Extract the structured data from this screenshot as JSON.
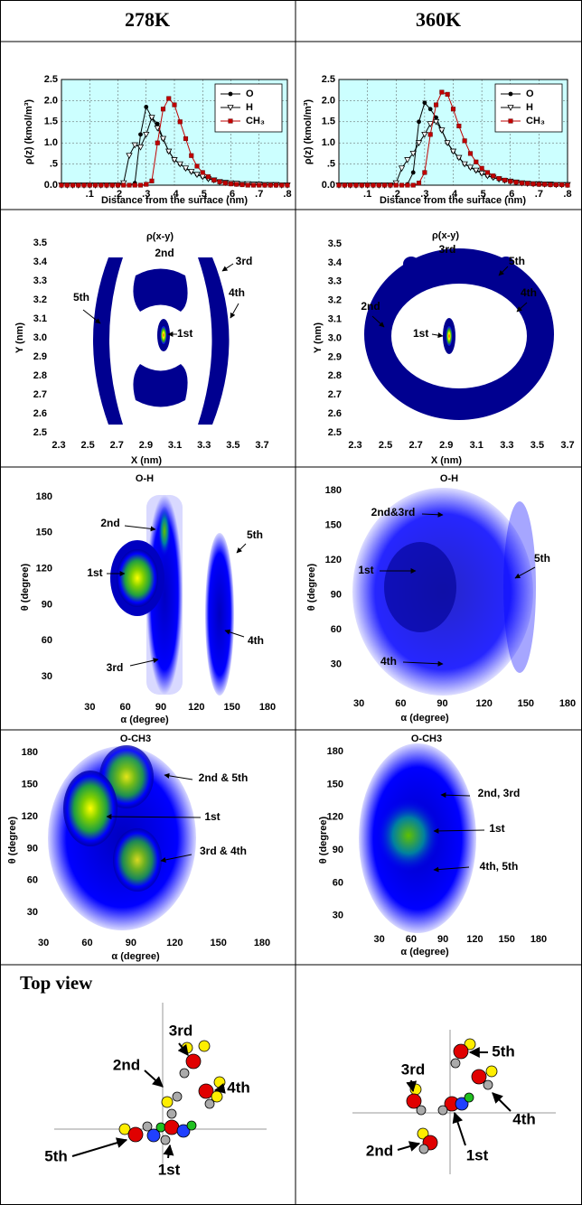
{
  "columns": [
    "278K",
    "360K"
  ],
  "chart_data": [
    {
      "type": "line",
      "x_label": "Distance from the surface (nm)",
      "y_label": "ρ(z) (kmol/m³)",
      "x": [
        0,
        0.02,
        0.04,
        0.06,
        0.08,
        0.1,
        0.12,
        0.14,
        0.16,
        0.18,
        0.2,
        0.22,
        0.24,
        0.26,
        0.28,
        0.3,
        0.32,
        0.34,
        0.36,
        0.38,
        0.4,
        0.42,
        0.44,
        0.46,
        0.48,
        0.5,
        0.52,
        0.54,
        0.56,
        0.58,
        0.6,
        0.62,
        0.64,
        0.66,
        0.68,
        0.7,
        0.72,
        0.74,
        0.76,
        0.78,
        0.8
      ],
      "series": [
        {
          "name": "O",
          "color": "#000000",
          "marker": "circle",
          "values": [
            0,
            0,
            0,
            0,
            0,
            0,
            0,
            0,
            0,
            0,
            0,
            0,
            0,
            0.05,
            1.2,
            1.85,
            1.6,
            1.45,
            1.1,
            0.8,
            0.6,
            0.5,
            0.4,
            0.32,
            0.25,
            0.2,
            0.15,
            0.12,
            0.08,
            0.06,
            0.05,
            0.04,
            0.03,
            0.03,
            0.02,
            0.02,
            0.01,
            0.01,
            0.01,
            0,
            0
          ]
        },
        {
          "name": "H",
          "color": "#000000",
          "marker": "triangle-down",
          "values": [
            0,
            0,
            0,
            0,
            0,
            0,
            0,
            0,
            0,
            0,
            0,
            0.05,
            0.7,
            0.95,
            0.9,
            1.2,
            1.6,
            1.35,
            1.1,
            0.8,
            0.6,
            0.5,
            0.4,
            0.32,
            0.25,
            0.2,
            0.15,
            0.12,
            0.08,
            0.06,
            0.05,
            0.04,
            0.03,
            0.03,
            0.02,
            0.02,
            0.01,
            0.01,
            0.01,
            0,
            0
          ]
        },
        {
          "name": "CH₃",
          "color": "#c00000",
          "marker": "square",
          "values": [
            0,
            0,
            0,
            0,
            0,
            0,
            0,
            0,
            0,
            0,
            0,
            0,
            0,
            0,
            0,
            0.02,
            0.1,
            1.0,
            1.8,
            2.05,
            1.9,
            1.5,
            1.1,
            0.7,
            0.45,
            0.3,
            0.2,
            0.12,
            0.08,
            0.05,
            0.03,
            0.02,
            0.01,
            0,
            0,
            0,
            0,
            0,
            0,
            0,
            0
          ]
        }
      ],
      "xlim": [
        0,
        0.8
      ],
      "ylim": [
        0,
        2.5
      ],
      "xticks": [
        {
          "value": 0.1,
          "label": ".1"
        },
        {
          "value": 0.2,
          "label": ".2"
        },
        {
          "value": 0.3,
          "label": ".3"
        },
        {
          "value": 0.4,
          "label": ".4"
        },
        {
          "value": 0.5,
          "label": ".5"
        },
        {
          "value": 0.6,
          "label": ".6"
        },
        {
          "value": 0.7,
          "label": ".7"
        },
        {
          "value": 0.8,
          "label": ".8"
        }
      ],
      "yticks": [
        {
          "value": 0,
          "label": "0.0"
        },
        {
          "value": 0.5,
          "label": ".5"
        },
        {
          "value": 1,
          "label": "1.0"
        },
        {
          "value": 1.5,
          "label": "1.5"
        },
        {
          "value": 2,
          "label": "2.0"
        },
        {
          "value": 2.5,
          "label": "2.5"
        }
      ],
      "grid": true,
      "legend": "upper right",
      "background": "#ccffff"
    },
    {
      "type": "line",
      "x_label": "Distance from the surface (nm)",
      "y_label": "ρ(z) (kmol/m³)",
      "x": [
        0,
        0.02,
        0.04,
        0.06,
        0.08,
        0.1,
        0.12,
        0.14,
        0.16,
        0.18,
        0.2,
        0.22,
        0.24,
        0.26,
        0.28,
        0.3,
        0.32,
        0.34,
        0.36,
        0.38,
        0.4,
        0.42,
        0.44,
        0.46,
        0.48,
        0.5,
        0.52,
        0.54,
        0.56,
        0.58,
        0.6,
        0.62,
        0.64,
        0.66,
        0.68,
        0.7,
        0.72,
        0.74,
        0.76,
        0.78,
        0.8
      ],
      "series": [
        {
          "name": "O",
          "color": "#000000",
          "marker": "circle",
          "values": [
            0,
            0,
            0,
            0,
            0,
            0,
            0,
            0,
            0,
            0,
            0,
            0,
            0.02,
            0.3,
            1.5,
            1.95,
            1.8,
            1.6,
            1.3,
            1.0,
            0.8,
            0.65,
            0.5,
            0.42,
            0.35,
            0.28,
            0.22,
            0.18,
            0.14,
            0.11,
            0.09,
            0.07,
            0.05,
            0.04,
            0.03,
            0.03,
            0.02,
            0.02,
            0.01,
            0.01,
            0.01
          ]
        },
        {
          "name": "H",
          "color": "#000000",
          "marker": "triangle-down",
          "values": [
            0,
            0,
            0,
            0,
            0,
            0,
            0,
            0,
            0,
            0,
            0.05,
            0.4,
            0.6,
            0.75,
            1.0,
            1.2,
            1.45,
            1.5,
            1.3,
            1.0,
            0.8,
            0.65,
            0.5,
            0.42,
            0.35,
            0.28,
            0.22,
            0.18,
            0.14,
            0.11,
            0.09,
            0.07,
            0.05,
            0.04,
            0.03,
            0.03,
            0.02,
            0.02,
            0.01,
            0.01,
            0.01
          ]
        },
        {
          "name": "CH₃",
          "color": "#c00000",
          "marker": "square",
          "values": [
            0,
            0,
            0,
            0,
            0,
            0,
            0,
            0,
            0,
            0,
            0,
            0,
            0,
            0,
            0.05,
            0.3,
            1.2,
            1.9,
            2.2,
            2.15,
            1.8,
            1.4,
            1.05,
            0.75,
            0.55,
            0.4,
            0.3,
            0.22,
            0.16,
            0.12,
            0.09,
            0.07,
            0.05,
            0.04,
            0.03,
            0.02,
            0.02,
            0.01,
            0.01,
            0.01,
            0
          ]
        }
      ],
      "xlim": [
        0,
        0.8
      ],
      "ylim": [
        0,
        2.5
      ],
      "xticks": [
        {
          "value": 0.1,
          "label": ".1"
        },
        {
          "value": 0.2,
          "label": ".2"
        },
        {
          "value": 0.3,
          "label": ".3"
        },
        {
          "value": 0.4,
          "label": ".4"
        },
        {
          "value": 0.5,
          "label": ".5"
        },
        {
          "value": 0.6,
          "label": ".6"
        },
        {
          "value": 0.7,
          "label": ".7"
        },
        {
          "value": 0.8,
          "label": ".8"
        }
      ],
      "yticks": [
        {
          "value": 0,
          "label": "0.0"
        },
        {
          "value": 0.5,
          "label": ".5"
        },
        {
          "value": 1,
          "label": "1.0"
        },
        {
          "value": 1.5,
          "label": "1.5"
        },
        {
          "value": 2,
          "label": "2.0"
        },
        {
          "value": 2.5,
          "label": "2.5"
        }
      ],
      "grid": true,
      "legend": "upper right",
      "background": "#ccffff"
    },
    {
      "type": "heatmap",
      "title": "ρ(x-y)",
      "x_label": "X (nm)",
      "y_label": "Y (nm)",
      "xlim": [
        2.3,
        3.7
      ],
      "ylim": [
        2.5,
        3.5
      ],
      "xticks": [
        2.3,
        2.5,
        2.7,
        2.9,
        3.1,
        3.3,
        3.5,
        3.7
      ],
      "yticks": [
        2.5,
        2.6,
        2.7,
        2.8,
        2.9,
        {
          "value": 3,
          "label": "3.0"
        },
        3.1,
        3.2,
        3.3,
        3.4,
        3.5
      ],
      "annotations": [
        "2nd",
        "3rd",
        "5th",
        "4th",
        "1st"
      ]
    },
    {
      "type": "heatmap",
      "title": "ρ(x-y)",
      "x_label": "X (nm)",
      "y_label": "Y (nm)",
      "xlim": [
        2.3,
        3.7
      ],
      "ylim": [
        2.5,
        3.5
      ],
      "xticks": [
        2.3,
        2.5,
        2.7,
        2.9,
        3.1,
        3.3,
        3.5,
        3.7
      ],
      "yticks": [
        2.5,
        2.6,
        2.7,
        2.8,
        2.9,
        {
          "value": 3,
          "label": "3.0"
        },
        3.1,
        3.2,
        3.3,
        3.4,
        3.5
      ],
      "annotations": [
        "3rd",
        "5th",
        "4th",
        "2nd",
        "1st"
      ]
    },
    {
      "type": "heatmap",
      "title": "O-H",
      "x_label": "α (degree)",
      "y_label": "θ (degree)",
      "xlim": [
        0,
        180
      ],
      "ylim": [
        15,
        180
      ],
      "xticks": [
        30,
        60,
        90,
        120,
        150,
        180
      ],
      "yticks": [
        30,
        60,
        90,
        120,
        150,
        180
      ],
      "annotations": [
        "2nd",
        "5th",
        "1st",
        "4th",
        "3rd"
      ]
    },
    {
      "type": "heatmap",
      "title": "O-H",
      "x_label": "α (degree)",
      "y_label": "θ (degree)",
      "xlim": [
        0,
        180
      ],
      "ylim": [
        15,
        180
      ],
      "xticks": [
        30,
        60,
        90,
        120,
        150,
        180
      ],
      "yticks": [
        30,
        60,
        90,
        120,
        150,
        180
      ],
      "annotations": [
        "2nd&3rd",
        "5th",
        "1st",
        "4th"
      ]
    },
    {
      "type": "heatmap",
      "title": "O-CH3",
      "x_label": "α (degree)",
      "y_label": "θ (degree)",
      "xlim": [
        15,
        180
      ],
      "ylim": [
        15,
        180
      ],
      "xticks": [
        30,
        60,
        90,
        120,
        150,
        180
      ],
      "yticks": [
        30,
        60,
        90,
        120,
        150,
        180
      ],
      "annotations": [
        "2nd & 5th",
        "1st",
        "3rd & 4th"
      ]
    },
    {
      "type": "heatmap",
      "title": "O-CH3",
      "x_label": "α (degree)",
      "y_label": "θ (degree)",
      "xlim": [
        15,
        180
      ],
      "ylim": [
        15,
        180
      ],
      "xticks": [
        30,
        60,
        90,
        120,
        150,
        180
      ],
      "yticks": [
        30,
        60,
        90,
        120,
        150,
        180
      ],
      "annotations": [
        "2nd, 3rd",
        "1st",
        "4th,  5th"
      ]
    }
  ],
  "top_view": {
    "title": "Top view",
    "labels": [
      [
        "3rd",
        "2nd",
        "4th",
        "5th",
        "1st"
      ],
      [
        "5th",
        "3rd",
        "4th",
        "2nd",
        "1st"
      ]
    ]
  }
}
